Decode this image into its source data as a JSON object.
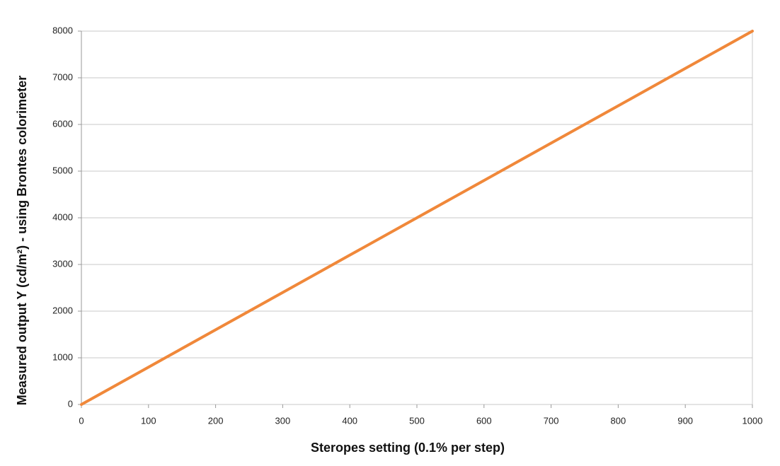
{
  "chart_data": {
    "type": "line",
    "x_label": "Steropes setting (0.1% per step)",
    "y_label": "Measured output  Y (cd/m²) - using Brontes colorimeter",
    "x": [
      0,
      100,
      200,
      300,
      400,
      500,
      600,
      700,
      800,
      900,
      1000
    ],
    "series": [
      {
        "name": "Y",
        "color": "#f0883a",
        "values": [
          0,
          800,
          1600,
          2400,
          3200,
          4000,
          4800,
          5600,
          6400,
          7200,
          8000
        ]
      }
    ],
    "xlim": [
      0,
      1000
    ],
    "xticks": [
      0,
      100,
      200,
      300,
      400,
      500,
      600,
      700,
      800,
      900,
      1000
    ],
    "ylim": [
      0,
      8000
    ],
    "yticks": [
      0,
      1000,
      2000,
      3000,
      4000,
      5000,
      6000,
      7000,
      8000
    ],
    "grid": true
  }
}
